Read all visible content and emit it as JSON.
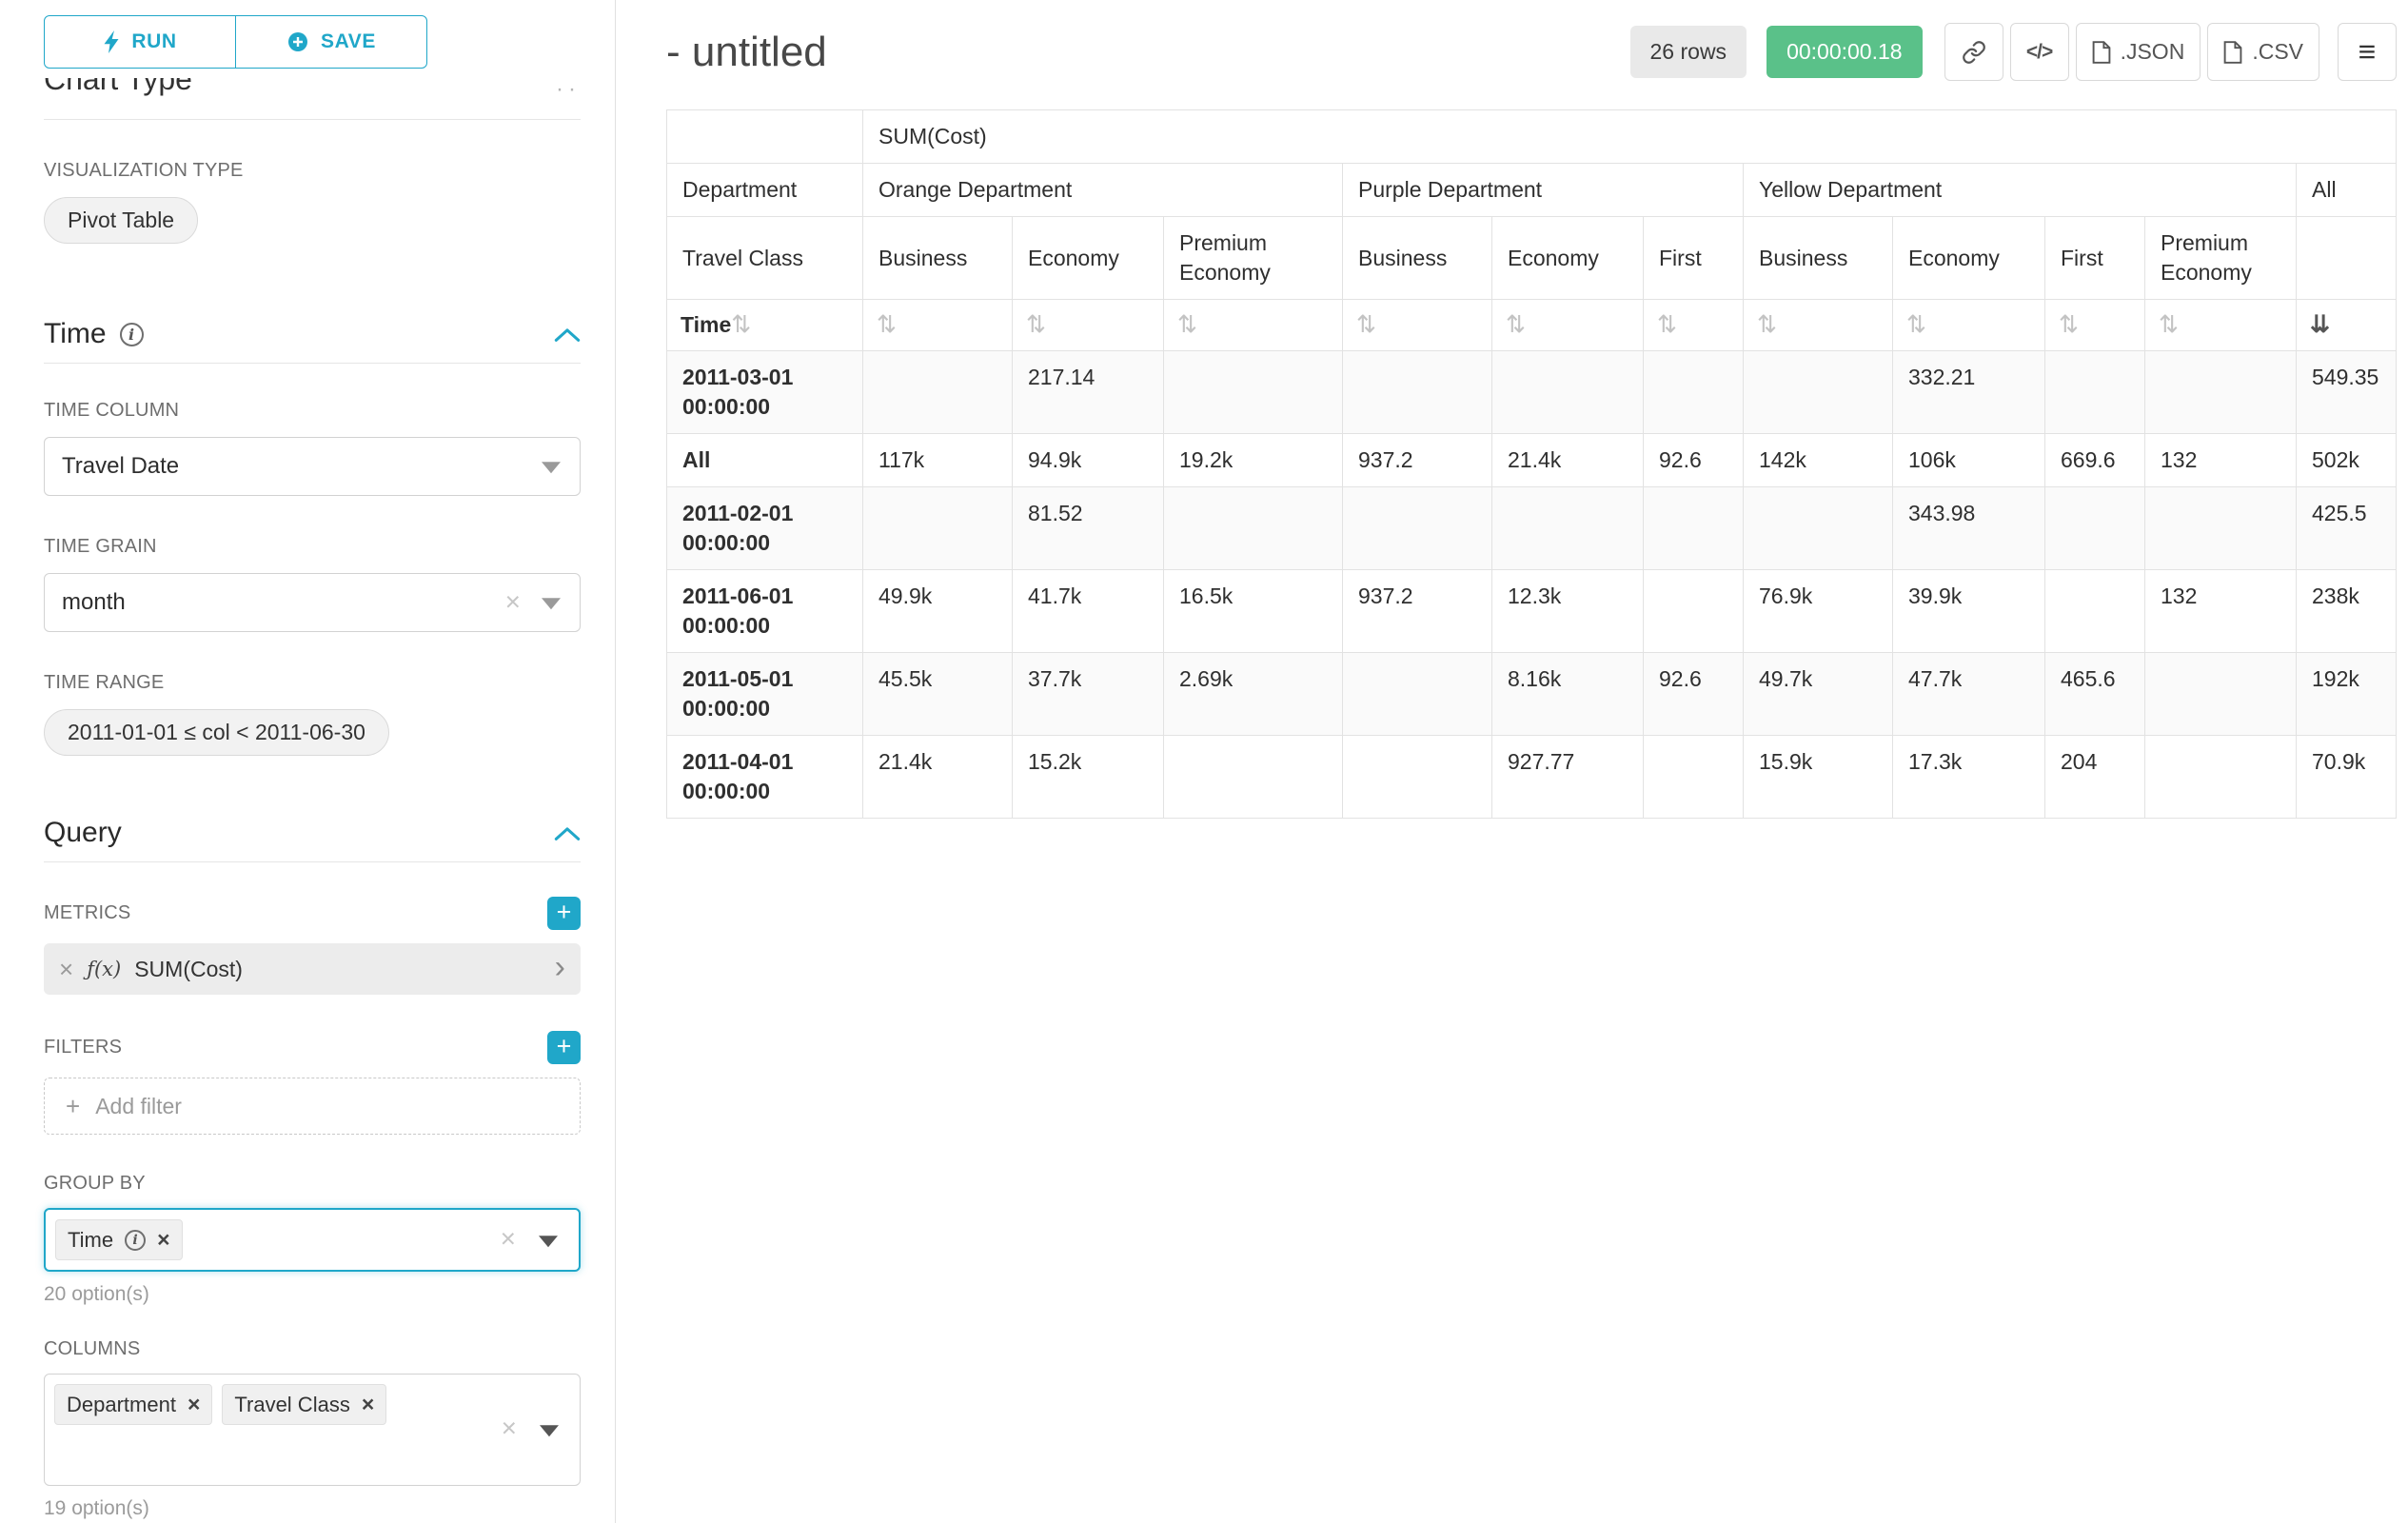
{
  "colors": {
    "accent": "#20a7c9",
    "success_green": "#5ac189"
  },
  "sidebar": {
    "run_label": "RUN",
    "save_label": "SAVE",
    "scrolled_heading": "Chart Type",
    "visualization": {
      "label": "VISUALIZATION TYPE",
      "value": "Pivot Table"
    },
    "time": {
      "title": "Time",
      "time_column_label": "TIME COLUMN",
      "time_column_value": "Travel Date",
      "time_grain_label": "TIME GRAIN",
      "time_grain_value": "month",
      "time_range_label": "TIME RANGE",
      "time_range_value": "2011-01-01 ≤ col < 2011-06-30"
    },
    "query": {
      "title": "Query",
      "metrics_label": "METRICS",
      "metric_fx": "ƒ(x)",
      "metric_value": "SUM(Cost)",
      "filters_label": "FILTERS",
      "add_filter_label": "Add filter",
      "group_by_label": "GROUP BY",
      "group_by_tags": [
        "Time"
      ],
      "group_by_hint": "20 option(s)",
      "columns_label": "COLUMNS",
      "columns_tags": [
        "Department",
        "Travel Class"
      ],
      "columns_hint": "19 option(s)"
    }
  },
  "header": {
    "title": "- untitled",
    "rows_badge": "26 rows",
    "timer_badge": "00:00:00.18",
    "code_icon_text": "</>",
    "json_label": ".JSON",
    "csv_label": ".CSV"
  },
  "pivot_table": {
    "metric_header": "SUM(Cost)",
    "department_label": "Department",
    "travel_class_label": "Travel Class",
    "time_label": "Time",
    "groups": [
      {
        "name": "Orange Department",
        "cols": [
          "Business",
          "Economy",
          "Premium Economy"
        ]
      },
      {
        "name": "Purple Department",
        "cols": [
          "Business",
          "Economy",
          "First"
        ]
      },
      {
        "name": "Yellow Department",
        "cols": [
          "Business",
          "Economy",
          "First",
          "Premium Economy"
        ]
      },
      {
        "name": "All",
        "cols": [
          ""
        ]
      }
    ],
    "rows": [
      {
        "label": "2011-03-01 00:00:00",
        "values": [
          "",
          "217.14",
          "",
          "",
          "",
          "",
          "",
          "332.21",
          "",
          "",
          "549.35"
        ]
      },
      {
        "label": "All",
        "values": [
          "117k",
          "94.9k",
          "19.2k",
          "937.2",
          "21.4k",
          "92.6",
          "142k",
          "106k",
          "669.6",
          "132",
          "502k"
        ]
      },
      {
        "label": "2011-02-01 00:00:00",
        "values": [
          "",
          "81.52",
          "",
          "",
          "",
          "",
          "",
          "343.98",
          "",
          "",
          "425.5"
        ]
      },
      {
        "label": "2011-06-01 00:00:00",
        "values": [
          "49.9k",
          "41.7k",
          "16.5k",
          "937.2",
          "12.3k",
          "",
          "76.9k",
          "39.9k",
          "",
          "132",
          "238k"
        ]
      },
      {
        "label": "2011-05-01 00:00:00",
        "values": [
          "45.5k",
          "37.7k",
          "2.69k",
          "",
          "8.16k",
          "92.6",
          "49.7k",
          "47.7k",
          "465.6",
          "",
          "192k"
        ]
      },
      {
        "label": "2011-04-01 00:00:00",
        "values": [
          "21.4k",
          "15.2k",
          "",
          "",
          "927.77",
          "",
          "15.9k",
          "17.3k",
          "204",
          "",
          "70.9k"
        ]
      }
    ]
  }
}
